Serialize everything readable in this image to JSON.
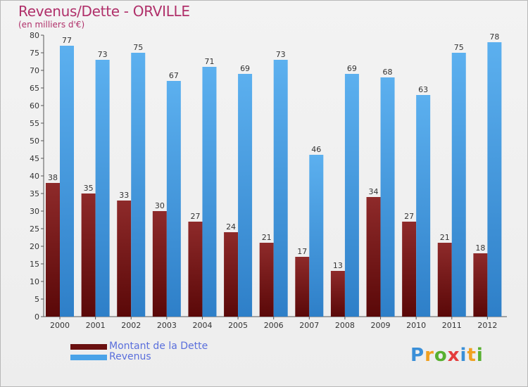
{
  "header": {
    "title": "Revenus/Dette - ORVILLE",
    "subtitle": "(en milliers d'€)"
  },
  "legend": {
    "dette_label": "Montant de la Dette",
    "revenus_label": "Revenus"
  },
  "logo": {
    "text": "Proxiti"
  },
  "colors": {
    "dette": "#7a1a1a",
    "revenus": "#4aa3e8",
    "title": "#b0306a",
    "legend_text": "#5a6fdc"
  },
  "chart_data": {
    "type": "bar",
    "title": "Revenus/Dette - ORVILLE",
    "subtitle": "(en milliers d'€)",
    "xlabel": "",
    "ylabel": "",
    "categories": [
      "2000",
      "2001",
      "2002",
      "2003",
      "2004",
      "2005",
      "2006",
      "2007",
      "2008",
      "2009",
      "2010",
      "2011",
      "2012"
    ],
    "series": [
      {
        "name": "Montant de la Dette",
        "values": [
          38,
          35,
          33,
          30,
          27,
          24,
          21,
          17,
          13,
          34,
          27,
          21,
          18
        ]
      },
      {
        "name": "Revenus",
        "values": [
          77,
          73,
          75,
          67,
          71,
          69,
          73,
          46,
          69,
          68,
          63,
          75,
          78
        ]
      }
    ],
    "ylim": [
      0,
      80
    ],
    "yticks": [
      0,
      5,
      10,
      15,
      20,
      25,
      30,
      35,
      40,
      45,
      50,
      55,
      60,
      65,
      70,
      75,
      80
    ],
    "grid": false,
    "legend_position": "bottom-left"
  }
}
